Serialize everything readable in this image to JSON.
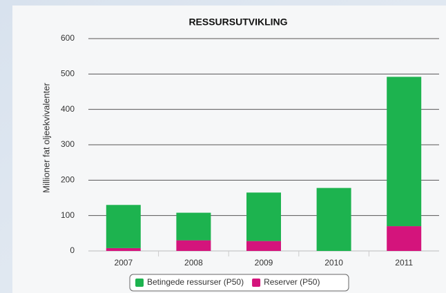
{
  "chart_data": {
    "type": "stacked_bar",
    "title": "RESSURSUTVIKLING",
    "y_label": "Millioner fat oljeekvivalenter",
    "categories": [
      "2007",
      "2008",
      "2009",
      "2010",
      "2011"
    ],
    "series": [
      {
        "name": "Betingede ressurser (P50)",
        "color": "#1db34f",
        "values": [
          122,
          78,
          137,
          178,
          422
        ]
      },
      {
        "name": "Reserver (P50)",
        "color": "#d4147c",
        "values": [
          8,
          30,
          28,
          0,
          70
        ]
      }
    ],
    "ylim": [
      0,
      600
    ],
    "yticks": [
      0,
      100,
      200,
      300,
      400,
      500,
      600
    ],
    "grid": true
  }
}
